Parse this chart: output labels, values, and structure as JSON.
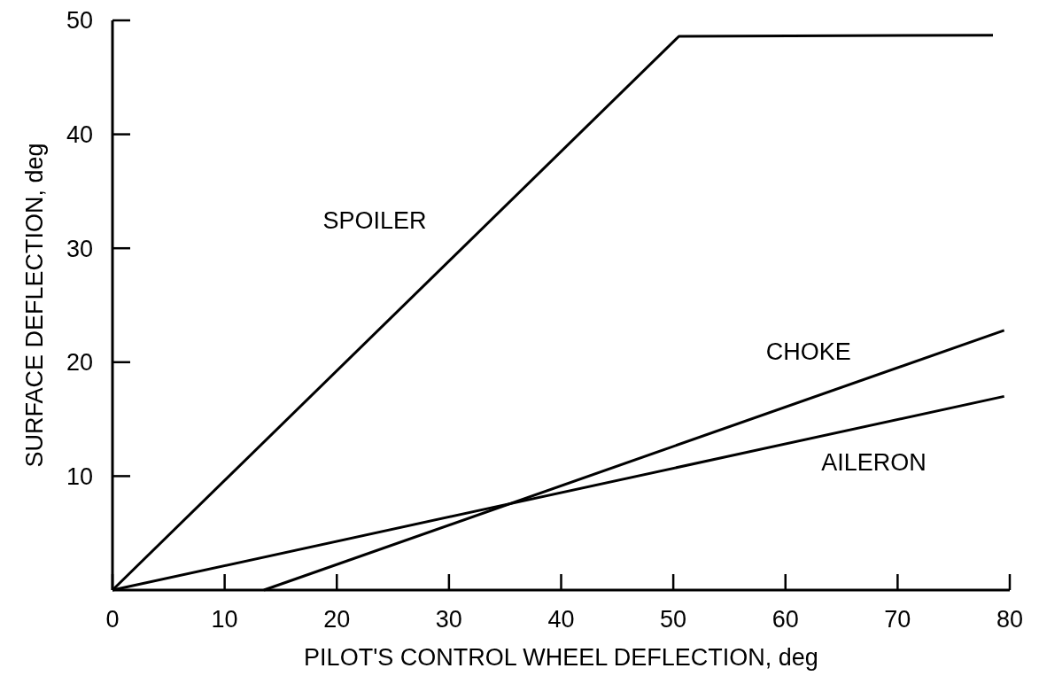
{
  "chart_data": {
    "type": "line",
    "xlabel": "PILOT'S CONTROL WHEEL DEFLECTION, deg",
    "ylabel": "SURFACE DEFLECTION, deg",
    "xlim": [
      0,
      80
    ],
    "ylim": [
      0,
      50
    ],
    "xticks": [
      0,
      10,
      20,
      30,
      40,
      50,
      60,
      70,
      80
    ],
    "yticks": [
      10,
      20,
      30,
      40,
      50
    ],
    "grid": false,
    "marker": "none",
    "line_style": "solid",
    "series": [
      {
        "name": "SPOILER",
        "color": "#000000",
        "x": [
          0,
          50.5,
          78.5
        ],
        "values": [
          0,
          48.6,
          48.7
        ]
      },
      {
        "name": "CHOKE",
        "color": "#000000",
        "x": [
          13.5,
          79.5
        ],
        "values": [
          0,
          22.8
        ]
      },
      {
        "name": "AILERON",
        "color": "#000000",
        "x": [
          0,
          79.5
        ],
        "values": [
          0,
          17
        ]
      }
    ]
  }
}
